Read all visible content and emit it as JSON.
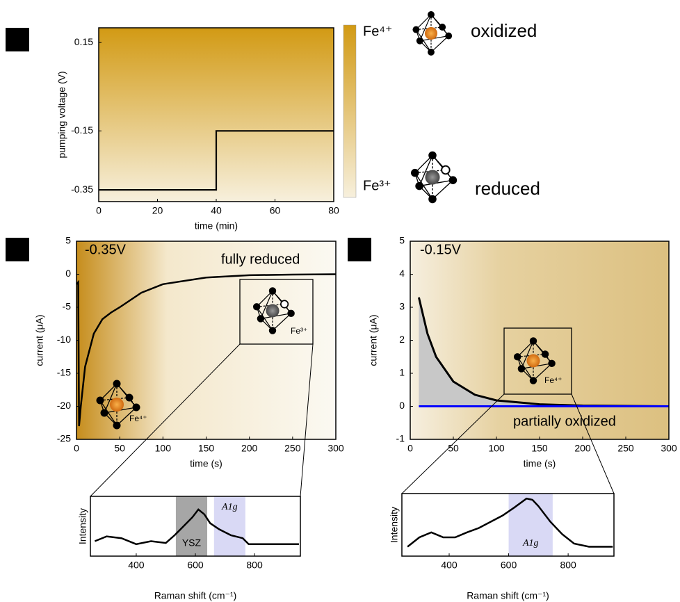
{
  "chart_data": [
    {
      "type": "line",
      "panel": "a",
      "xlabel": "time (min)",
      "ylabel": "pumping voltage (V)",
      "x": [
        0,
        40,
        40,
        80
      ],
      "series": [
        {
          "color": "#000000",
          "values": [
            -0.35,
            -0.35,
            -0.15,
            -0.15
          ]
        }
      ],
      "xlim": [
        0,
        80
      ],
      "ylim": [
        -0.39,
        0.2
      ],
      "xticks": [
        0,
        20,
        40,
        60,
        80
      ],
      "yticks": [
        0.15,
        -0.15,
        -0.35
      ],
      "colorbar": {
        "top": "Fe⁴⁺",
        "bottom": "Fe³⁺"
      },
      "annotations": [
        "oxidized",
        "reduced"
      ]
    },
    {
      "type": "line",
      "panel": "b",
      "xlabel": "time (s)",
      "ylabel": "current (μA)",
      "x": [
        0,
        2,
        3,
        5,
        10,
        20,
        30,
        40,
        50,
        75,
        100,
        150,
        200,
        250,
        300
      ],
      "series": [
        {
          "color": "#000000",
          "values": [
            -1.5,
            -1.2,
            -23,
            -20,
            -14,
            -9,
            -6.8,
            -5.8,
            -5,
            -2.8,
            -1.5,
            -0.5,
            -0.15,
            -0.05,
            0
          ]
        }
      ],
      "xlim": [
        0,
        300
      ],
      "ylim": [
        -25,
        5
      ],
      "xticks": [
        0,
        50,
        100,
        150,
        200,
        250,
        300
      ],
      "yticks": [
        5,
        0,
        -5,
        -10,
        -15,
        -20,
        -25
      ],
      "annotations": [
        "-0.35V",
        "fully reduced",
        "Fe³⁺",
        "Fe⁴⁺"
      ]
    },
    {
      "type": "line",
      "panel": "c",
      "xlabel": "time (s)",
      "ylabel": "current (μA)",
      "x": [
        10,
        20,
        30,
        50,
        75,
        100,
        150,
        200,
        300
      ],
      "series": [
        {
          "color": "#000000",
          "fill": "#c8c8c8",
          "values": [
            3.3,
            2.2,
            1.5,
            0.75,
            0.35,
            0.18,
            0.06,
            0.02,
            0
          ]
        },
        {
          "color": "#0000ff",
          "values": [
            0,
            0,
            0,
            0,
            0,
            0,
            0,
            0,
            0
          ]
        }
      ],
      "xlim": [
        0,
        300
      ],
      "ylim": [
        -1,
        5
      ],
      "xticks": [
        0,
        50,
        100,
        150,
        200,
        250,
        300
      ],
      "yticks": [
        5,
        4,
        3,
        2,
        1,
        0,
        -1
      ],
      "annotations": [
        "-0.15V",
        "partially oxidized",
        "Fe⁴⁺"
      ]
    },
    {
      "type": "line",
      "xlabel": "Raman shift (cm⁻¹)",
      "ylabel": "Intensity",
      "x": [
        260,
        300,
        350,
        400,
        450,
        500,
        530,
        560,
        590,
        610,
        630,
        650,
        680,
        720,
        760,
        780,
        850,
        950
      ],
      "series": [
        {
          "color": "#000000",
          "values": [
            0.25,
            0.33,
            0.3,
            0.2,
            0.25,
            0.22,
            0.35,
            0.5,
            0.65,
            0.78,
            0.7,
            0.55,
            0.45,
            0.35,
            0.3,
            0.2,
            0.2,
            0.2
          ]
        }
      ],
      "xlim": [
        245,
        955
      ],
      "ylim": [
        0,
        1
      ],
      "xticks": [
        400,
        600,
        800
      ],
      "bands": [
        {
          "label": "YSZ",
          "range": [
            534,
            640
          ],
          "color": "#a6a6a6"
        },
        {
          "label": "A1g",
          "range": [
            663,
            769
          ],
          "color": "#d9d9f5"
        }
      ]
    },
    {
      "type": "line",
      "xlabel": "Raman shift (cm⁻¹)",
      "ylabel": "Intensity",
      "x": [
        260,
        300,
        340,
        380,
        420,
        460,
        500,
        540,
        580,
        620,
        660,
        680,
        700,
        740,
        780,
        820,
        870,
        950
      ],
      "series": [
        {
          "color": "#000000",
          "values": [
            0.15,
            0.3,
            0.38,
            0.3,
            0.3,
            0.38,
            0.45,
            0.55,
            0.65,
            0.78,
            0.92,
            0.9,
            0.8,
            0.55,
            0.35,
            0.2,
            0.15,
            0.15
          ]
        }
      ],
      "xlim": [
        241,
        954
      ],
      "ylim": [
        0,
        1
      ],
      "xticks": [
        400,
        600,
        800
      ],
      "bands": [
        {
          "label": "A1g",
          "range": [
            600,
            748
          ],
          "color": "#d9d9f5"
        }
      ]
    }
  ]
}
